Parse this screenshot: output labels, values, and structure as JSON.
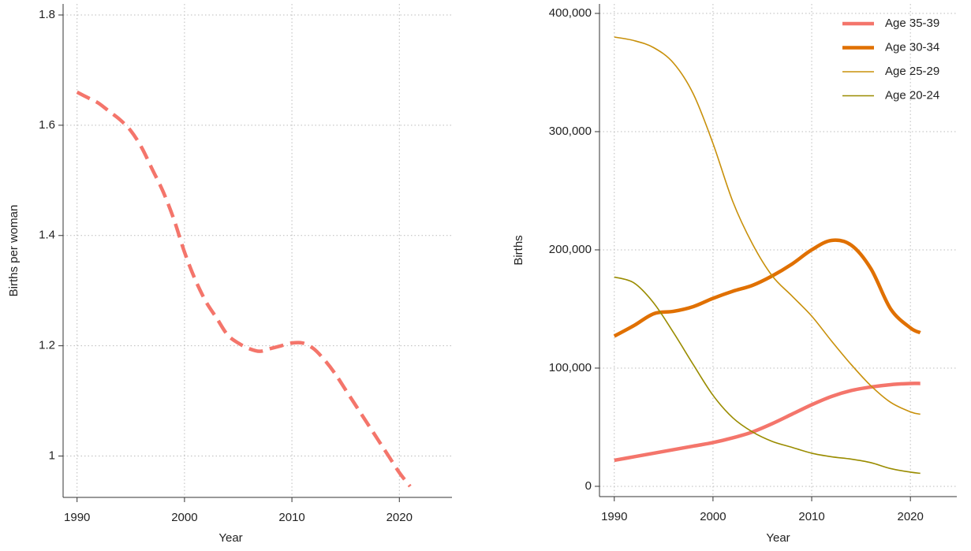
{
  "chart_data": [
    {
      "type": "line",
      "x_label": "Year",
      "y_label": "Births per woman",
      "x": [
        1990,
        1991,
        1992,
        1993,
        1994,
        1995,
        1996,
        1997,
        1998,
        1999,
        2000,
        2001,
        2002,
        2003,
        2004,
        2005,
        2006,
        2007,
        2008,
        2009,
        2010,
        2011,
        2012,
        2013,
        2014,
        2015,
        2016,
        2017,
        2018,
        2019,
        2020,
        2021
      ],
      "values": [
        1.66,
        1.65,
        1.64,
        1.625,
        1.61,
        1.59,
        1.56,
        1.52,
        1.48,
        1.43,
        1.37,
        1.32,
        1.28,
        1.25,
        1.22,
        1.205,
        1.195,
        1.19,
        1.195,
        1.2,
        1.205,
        1.205,
        1.195,
        1.175,
        1.15,
        1.12,
        1.09,
        1.06,
        1.03,
        1.0,
        0.97,
        0.945
      ],
      "color": "#f4756b",
      "dashed": true,
      "xlim": [
        1988.7,
        2024.9
      ],
      "xticks": [
        1990,
        2000,
        2010,
        2020
      ],
      "ylim": [
        0.925,
        1.82
      ],
      "yticks": [
        1,
        1.2,
        1.4,
        1.6,
        1.8
      ],
      "grid": true
    },
    {
      "type": "line",
      "x_label": "Year",
      "y_label": "Births",
      "x": [
        1990,
        1992,
        1994,
        1996,
        1998,
        2000,
        2002,
        2004,
        2006,
        2008,
        2010,
        2012,
        2014,
        2016,
        2018,
        2020,
        2021
      ],
      "series": [
        {
          "name": "Age 35-39",
          "color": "#f4756b",
          "values": [
            22000,
            25000,
            28000,
            31000,
            34000,
            37000,
            41000,
            46000,
            53000,
            61000,
            69000,
            76000,
            81000,
            84000,
            86000,
            87000,
            87000
          ]
        },
        {
          "name": "Age 30-34",
          "color": "#e07000",
          "values": [
            127000,
            136000,
            146000,
            148000,
            152000,
            159000,
            165000,
            170000,
            178000,
            188000,
            200000,
            208000,
            204000,
            184000,
            150000,
            134000,
            130000
          ]
        },
        {
          "name": "Age 25-29",
          "color": "#c8900a",
          "values": [
            380000,
            377000,
            371000,
            358000,
            332000,
            290000,
            241000,
            205000,
            178000,
            161000,
            144000,
            123000,
            103000,
            85000,
            71000,
            63000,
            61000
          ]
        },
        {
          "name": "Age 20-24",
          "color": "#9a8c00",
          "values": [
            177000,
            172000,
            155000,
            130000,
            103000,
            77000,
            58000,
            46000,
            38000,
            33000,
            28000,
            25000,
            23000,
            20000,
            15000,
            12000,
            11000
          ]
        }
      ],
      "xlim": [
        1988.5,
        2024.7
      ],
      "xticks": [
        1990,
        2000,
        2010,
        2020
      ],
      "ylim": [
        -8700,
        408000
      ],
      "yticks": [
        0,
        {
          "value": 100000,
          "label": "100,000"
        },
        {
          "value": 200000,
          "label": "200,000"
        },
        {
          "value": 300000,
          "label": "300,000"
        },
        {
          "value": 400000,
          "label": "400,000"
        }
      ],
      "grid": true,
      "legend": "top-right"
    }
  ]
}
